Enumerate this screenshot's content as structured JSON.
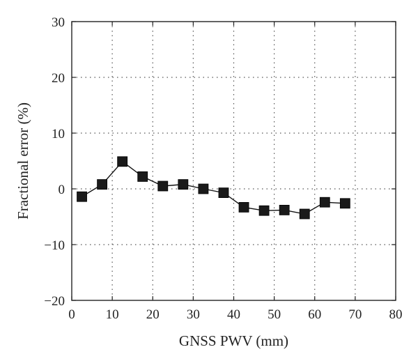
{
  "chart_data": {
    "type": "line",
    "title": "",
    "xlabel": "GNSS PWV (mm)",
    "ylabel": "Fractional error (%)",
    "xlim": [
      0,
      80
    ],
    "ylim": [
      -20,
      30
    ],
    "xticks": [
      0,
      10,
      20,
      30,
      40,
      50,
      60,
      70,
      80
    ],
    "yticks": [
      -20,
      -10,
      0,
      10,
      20,
      30
    ],
    "xtick_labels": [
      "0",
      "10",
      "20",
      "30",
      "40",
      "50",
      "60",
      "70",
      "80"
    ],
    "ytick_labels": [
      "−20",
      "−10",
      "0",
      "10",
      "20",
      "30"
    ],
    "grid": true,
    "marker": "square",
    "series": [
      {
        "x": [
          2.5,
          7.5,
          12.5,
          17.5,
          22.5,
          27.5,
          32.5,
          37.5,
          42.5,
          47.5,
          52.5,
          57.5,
          62.5,
          67.5
        ],
        "y": [
          -1.4,
          0.8,
          4.9,
          2.2,
          0.5,
          0.8,
          0.0,
          -0.7,
          -3.3,
          -3.9,
          -3.8,
          -4.5,
          -2.4,
          -2.6
        ]
      }
    ]
  }
}
